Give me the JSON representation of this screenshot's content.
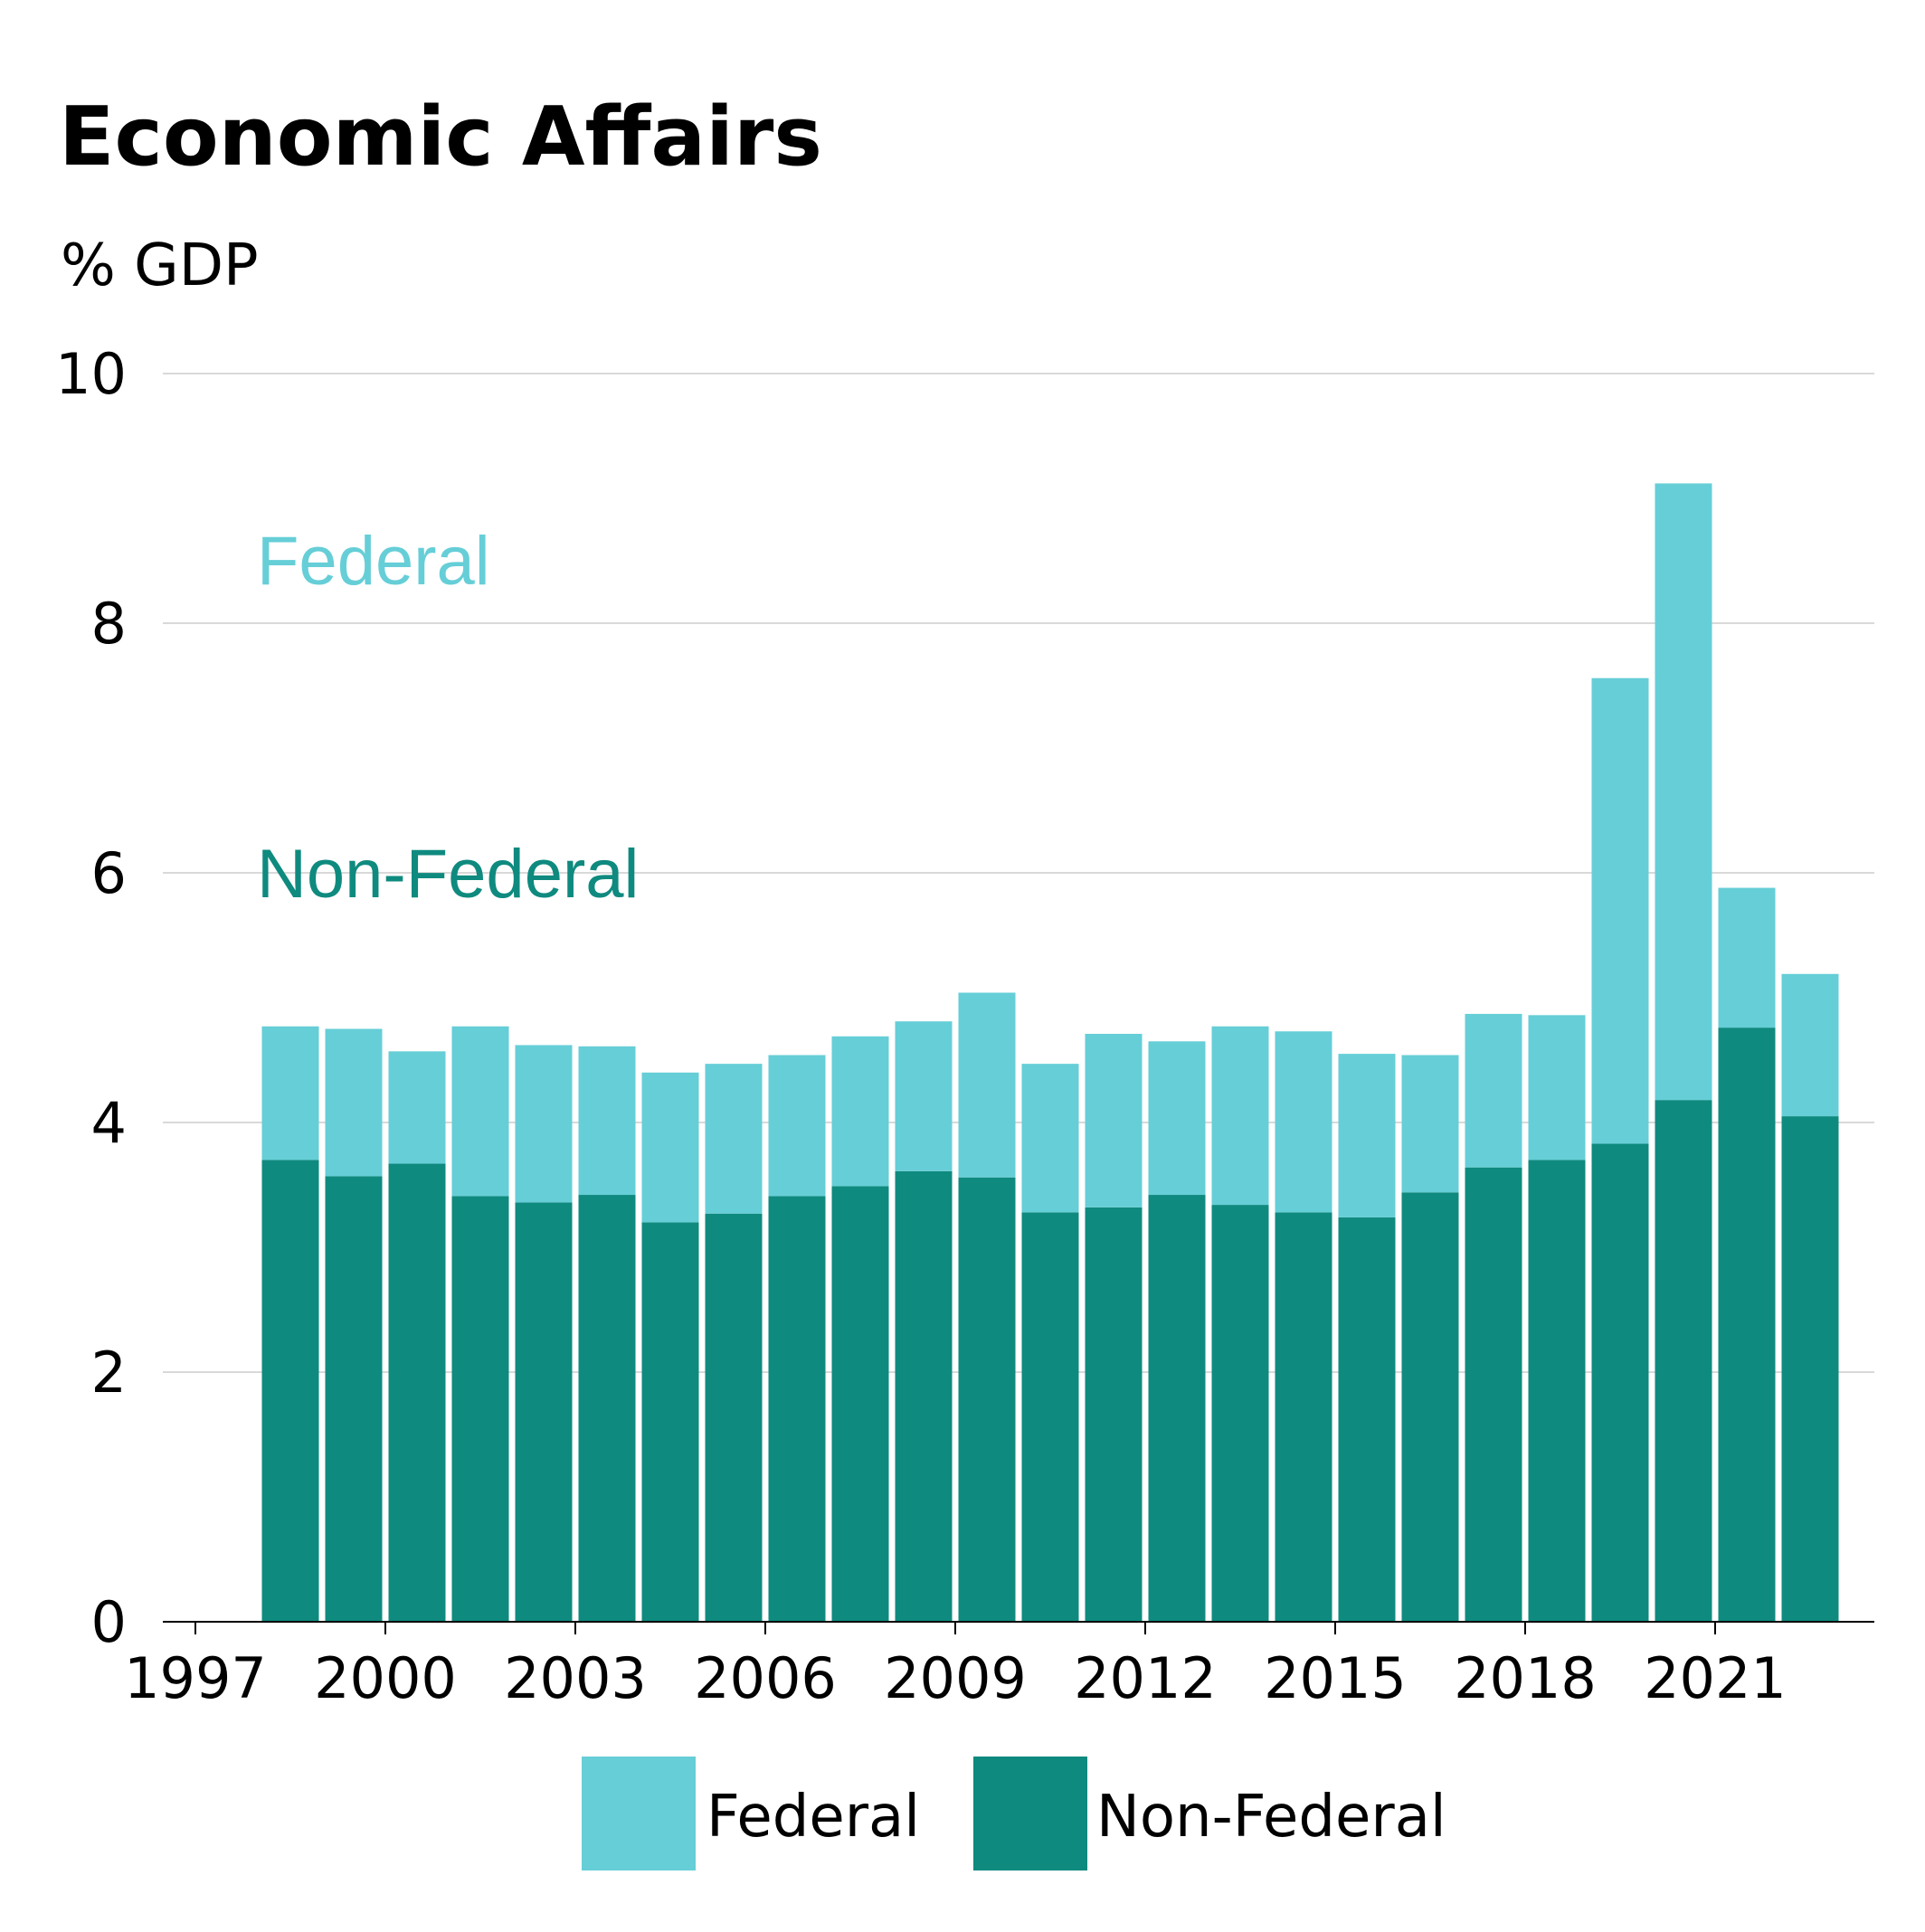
{
  "chart_data": {
    "type": "bar",
    "stacked": true,
    "title": "Economic Affairs",
    "ylabel": "% GDP",
    "xlabel": "",
    "ylim": [
      0,
      10
    ],
    "yticks": [
      0,
      2,
      4,
      6,
      8,
      10
    ],
    "xticks": [
      "1997",
      "2000",
      "2003",
      "2006",
      "2009",
      "2012",
      "2015",
      "2018",
      "2021"
    ],
    "categories": [
      1998,
      1999,
      2000,
      2001,
      2002,
      2003,
      2004,
      2005,
      2006,
      2007,
      2008,
      2009,
      2010,
      2011,
      2012,
      2013,
      2014,
      2015,
      2016,
      2017,
      2018,
      2019,
      2020,
      2021,
      2022
    ],
    "series": [
      {
        "name": "Non-Federal",
        "color": "#0f8a7f",
        "values": [
          3.7,
          3.57,
          3.67,
          3.41,
          3.36,
          3.42,
          3.2,
          3.27,
          3.41,
          3.49,
          3.61,
          3.56,
          3.28,
          3.32,
          3.42,
          3.34,
          3.28,
          3.24,
          3.44,
          3.64,
          3.7,
          3.83,
          4.18,
          4.76,
          4.05
        ]
      },
      {
        "name": "Federal",
        "color": "#66ced7",
        "values": [
          1.07,
          1.18,
          0.9,
          1.36,
          1.26,
          1.19,
          1.2,
          1.2,
          1.13,
          1.2,
          1.2,
          1.48,
          1.19,
          1.39,
          1.23,
          1.43,
          1.45,
          1.31,
          1.1,
          1.23,
          1.16,
          3.73,
          4.94,
          1.12,
          1.14
        ]
      }
    ],
    "annotations": [
      {
        "text": "Federal",
        "series": "Federal"
      },
      {
        "text": "Non-Federal",
        "series": "Non-Federal"
      }
    ],
    "legend": {
      "position": "bottom",
      "items": [
        {
          "label": "Federal",
          "color": "#66ced7"
        },
        {
          "label": "Non-Federal",
          "color": "#0f8a7f"
        }
      ]
    },
    "grid": true
  }
}
